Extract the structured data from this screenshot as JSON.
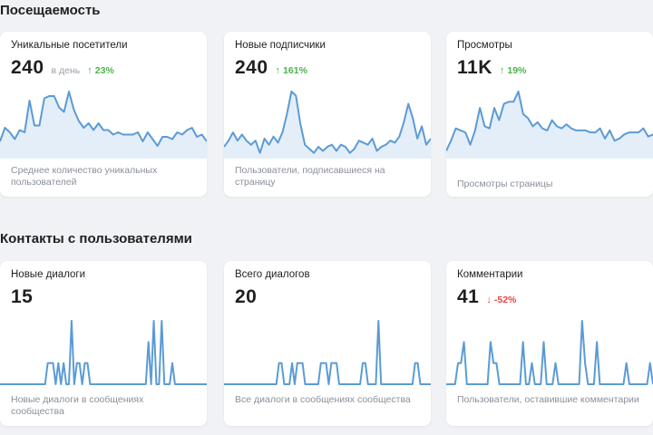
{
  "sections": {
    "attendance": {
      "title": "Посещаемость"
    },
    "contacts": {
      "title": "Контакты с пользователями"
    }
  },
  "colors": {
    "line": "#5b9bd5",
    "fill": "#e4eef9",
    "up": "#4bb34b",
    "down": "#e64646"
  },
  "cards": {
    "unique_visitors": {
      "title": "Уникальные посетители",
      "value": "240",
      "unit": "в день",
      "delta": "23%",
      "delta_direction": "up",
      "description": "Среднее количество уникальных пользователей",
      "spark": [
        12,
        24,
        20,
        14,
        22,
        20,
        48,
        26,
        26,
        50,
        52,
        52,
        42,
        38,
        56,
        40,
        30,
        24,
        28,
        22,
        28,
        22,
        22,
        18,
        20,
        18,
        18,
        18,
        20,
        12,
        20,
        14,
        8,
        16,
        16,
        14,
        20,
        18,
        22,
        24,
        16,
        18,
        12
      ]
    },
    "new_subscribers": {
      "title": "Новые подписчики",
      "value": "240",
      "delta": "161%",
      "delta_direction": "up",
      "description": "Пользователи, подписавшиеся на страницу",
      "spark": [
        8,
        14,
        22,
        14,
        20,
        14,
        10,
        14,
        2,
        16,
        10,
        18,
        12,
        22,
        40,
        62,
        58,
        30,
        10,
        6,
        2,
        8,
        4,
        8,
        10,
        4,
        10,
        8,
        2,
        6,
        14,
        12,
        10,
        16,
        4,
        8,
        10,
        14,
        12,
        18,
        32,
        50,
        36,
        16,
        28,
        10,
        16
      ]
    },
    "views": {
      "title": "Просмотры",
      "value": "11K",
      "delta": "19%",
      "delta_direction": "up",
      "description": "Просмотры страницы",
      "spark": [
        4,
        14,
        26,
        24,
        22,
        10,
        24,
        46,
        28,
        26,
        46,
        34,
        50,
        52,
        52,
        62,
        40,
        36,
        28,
        32,
        26,
        24,
        34,
        28,
        26,
        30,
        26,
        24,
        24,
        24,
        22,
        22,
        26,
        16,
        24,
        14,
        16,
        20,
        22,
        22,
        22,
        26,
        18,
        20
      ]
    },
    "new_dialogs": {
      "title": "Новые диалоги",
      "value": "15",
      "description": "Новые диалоги в сообщениях сообщества",
      "spark": [
        0,
        0,
        0,
        0,
        0,
        0,
        0,
        0,
        0,
        0,
        0,
        0,
        0,
        0,
        0,
        0,
        0,
        0,
        1,
        1,
        1,
        0,
        1,
        0,
        1,
        0,
        0,
        3,
        0,
        1,
        1,
        0,
        1,
        1,
        0,
        0,
        0,
        0,
        0,
        0,
        0,
        0,
        0,
        0,
        0,
        0,
        0,
        0,
        0,
        0,
        0,
        0,
        0,
        0,
        0,
        0,
        2,
        0,
        3,
        0,
        0,
        3,
        0,
        0,
        0,
        1,
        0,
        0,
        0,
        0,
        0,
        0,
        0,
        0,
        0,
        0,
        0,
        0,
        0
      ]
    },
    "total_dialogs": {
      "title": "Всего диалогов",
      "value": "20",
      "description": "Все диалоги в сообщениях сообщества",
      "spark": [
        0,
        0,
        0,
        0,
        0,
        0,
        0,
        0,
        0,
        0,
        0,
        0,
        0,
        0,
        0,
        0,
        0,
        0,
        0,
        0,
        0,
        1,
        1,
        0,
        0,
        0,
        1,
        0,
        1,
        1,
        1,
        0,
        0,
        0,
        0,
        0,
        0,
        1,
        1,
        1,
        0,
        1,
        1,
        1,
        0,
        0,
        0,
        0,
        0,
        0,
        0,
        0,
        0,
        1,
        1,
        0,
        0,
        0,
        0,
        3,
        0,
        0,
        0,
        0,
        0,
        0,
        0,
        0,
        0,
        0,
        0,
        0,
        0,
        1,
        1,
        0,
        0,
        0,
        0,
        0
      ]
    },
    "comments": {
      "title": "Комментарии",
      "value": "41",
      "delta": "-52%",
      "delta_direction": "down",
      "description": "Пользователи, оставившие комментарии",
      "spark": [
        0,
        0,
        0,
        0,
        1,
        1,
        2,
        0,
        0,
        0,
        0,
        0,
        0,
        0,
        0,
        2,
        1,
        1,
        0,
        0,
        0,
        0,
        0,
        0,
        0,
        0,
        2,
        0,
        0,
        1,
        0,
        0,
        0,
        2,
        0,
        0,
        0,
        1,
        0,
        0,
        0,
        0,
        0,
        0,
        0,
        0,
        3,
        1,
        0,
        0,
        0,
        2,
        0,
        0,
        0,
        0,
        0,
        0,
        0,
        0,
        0,
        1,
        0,
        0,
        0,
        0,
        0,
        0,
        0,
        1,
        0
      ]
    }
  }
}
